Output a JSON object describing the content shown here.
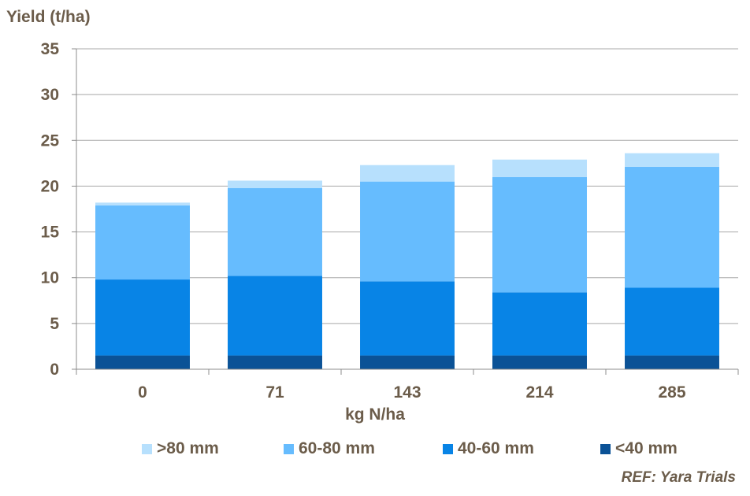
{
  "chart_data": {
    "type": "bar",
    "stacked": true,
    "title": "",
    "ylabel": "Yield (t/ha)",
    "xlabel": "kg N/ha",
    "categories": [
      "0",
      "71",
      "143",
      "214",
      "285"
    ],
    "ylim": [
      0,
      35
    ],
    "yticks": [
      0,
      5,
      10,
      15,
      20,
      25,
      30,
      35
    ],
    "grid": true,
    "legend_position": "bottom",
    "series": [
      {
        "name": "<40 mm",
        "color": "#0b5296",
        "values": [
          1.5,
          1.5,
          1.5,
          1.5,
          1.5
        ]
      },
      {
        "name": "40-60 mm",
        "color": "#0884e6",
        "values": [
          8.3,
          8.7,
          8.1,
          6.9,
          7.4
        ]
      },
      {
        "name": "60-80 mm",
        "color": "#66bcfe",
        "values": [
          8.1,
          9.6,
          10.9,
          12.6,
          13.2
        ]
      },
      {
        "name": ">80 mm",
        "color": "#b7e0fd",
        "values": [
          0.3,
          0.8,
          1.8,
          1.9,
          1.5
        ]
      }
    ],
    "legend_order": [
      3,
      2,
      1,
      0
    ],
    "annotation": "REF: Yara Trials"
  }
}
